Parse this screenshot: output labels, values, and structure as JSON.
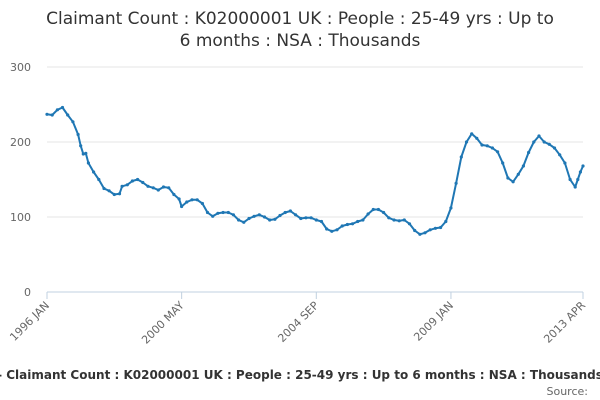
{
  "chart_data": {
    "type": "line",
    "title_lines": [
      "Claimant Count : K02000001 UK : People : 25-49 yrs : Up to",
      "6 months : NSA : Thousands"
    ],
    "ylim": [
      0,
      300
    ],
    "y_ticks": [
      0,
      100,
      200,
      300
    ],
    "y_tick_labels": [
      "0",
      "100",
      "200",
      "300"
    ],
    "x_tick_labels": [
      "1996 JAN",
      "2000 MAY",
      "2004 SEP",
      "2009 JAN",
      "2013 APR"
    ],
    "x_tick_dates": [
      "1996-01",
      "2000-05",
      "2004-09",
      "2009-01",
      "2013-04"
    ],
    "x_range": [
      "1996-01",
      "2013-04"
    ],
    "grid": true,
    "legend": "bottom",
    "series": [
      {
        "name": "Claimant Count : K02000001 UK : People : 25-49 yrs : Up to 6 months : NSA : Thousands",
        "color": "#1f77b4",
        "points": [
          [
            "1996-01",
            237
          ],
          [
            "1996-03",
            236
          ],
          [
            "1996-05",
            243
          ],
          [
            "1996-07",
            246
          ],
          [
            "1996-09",
            236
          ],
          [
            "1996-11",
            227
          ],
          [
            "1997-01",
            210
          ],
          [
            "1997-02",
            195
          ],
          [
            "1997-03",
            184
          ],
          [
            "1997-04",
            185
          ],
          [
            "1997-05",
            172
          ],
          [
            "1997-07",
            160
          ],
          [
            "1997-09",
            150
          ],
          [
            "1997-11",
            138
          ],
          [
            "1998-01",
            135
          ],
          [
            "1998-03",
            130
          ],
          [
            "1998-05",
            131
          ],
          [
            "1998-06",
            141
          ],
          [
            "1998-08",
            143
          ],
          [
            "1998-10",
            148
          ],
          [
            "1998-12",
            150
          ],
          [
            "1999-02",
            146
          ],
          [
            "1999-04",
            141
          ],
          [
            "1999-06",
            139
          ],
          [
            "1999-08",
            136
          ],
          [
            "1999-10",
            140
          ],
          [
            "1999-12",
            139
          ],
          [
            "2000-02",
            130
          ],
          [
            "2000-04",
            124
          ],
          [
            "2000-05",
            114
          ],
          [
            "2000-07",
            120
          ],
          [
            "2000-09",
            123
          ],
          [
            "2000-11",
            123
          ],
          [
            "2001-01",
            118
          ],
          [
            "2001-03",
            106
          ],
          [
            "2001-05",
            101
          ],
          [
            "2001-07",
            105
          ],
          [
            "2001-09",
            106
          ],
          [
            "2001-11",
            106
          ],
          [
            "2002-01",
            103
          ],
          [
            "2002-03",
            96
          ],
          [
            "2002-05",
            93
          ],
          [
            "2002-07",
            98
          ],
          [
            "2002-09",
            101
          ],
          [
            "2002-11",
            103
          ],
          [
            "2003-01",
            100
          ],
          [
            "2003-03",
            96
          ],
          [
            "2003-05",
            97
          ],
          [
            "2003-07",
            102
          ],
          [
            "2003-09",
            106
          ],
          [
            "2003-11",
            108
          ],
          [
            "2004-01",
            103
          ],
          [
            "2004-03",
            98
          ],
          [
            "2004-05",
            99
          ],
          [
            "2004-07",
            99
          ],
          [
            "2004-09",
            96
          ],
          [
            "2004-11",
            94
          ],
          [
            "2005-01",
            84
          ],
          [
            "2005-03",
            81
          ],
          [
            "2005-05",
            83
          ],
          [
            "2005-07",
            88
          ],
          [
            "2005-09",
            90
          ],
          [
            "2005-11",
            91
          ],
          [
            "2006-01",
            94
          ],
          [
            "2006-03",
            96
          ],
          [
            "2006-05",
            104
          ],
          [
            "2006-07",
            110
          ],
          [
            "2006-09",
            110
          ],
          [
            "2006-11",
            106
          ],
          [
            "2007-01",
            99
          ],
          [
            "2007-03",
            96
          ],
          [
            "2007-05",
            95
          ],
          [
            "2007-07",
            96
          ],
          [
            "2007-09",
            91
          ],
          [
            "2007-11",
            82
          ],
          [
            "2008-01",
            77
          ],
          [
            "2008-03",
            79
          ],
          [
            "2008-05",
            83
          ],
          [
            "2008-07",
            85
          ],
          [
            "2008-09",
            86
          ],
          [
            "2008-11",
            94
          ],
          [
            "2009-01",
            112
          ],
          [
            "2009-03",
            145
          ],
          [
            "2009-05",
            180
          ],
          [
            "2009-07",
            200
          ],
          [
            "2009-09",
            211
          ],
          [
            "2009-11",
            205
          ],
          [
            "2010-01",
            196
          ],
          [
            "2010-03",
            195
          ],
          [
            "2010-05",
            192
          ],
          [
            "2010-07",
            187
          ],
          [
            "2010-09",
            172
          ],
          [
            "2010-11",
            152
          ],
          [
            "2011-01",
            147
          ],
          [
            "2011-03",
            157
          ],
          [
            "2011-05",
            168
          ],
          [
            "2011-07",
            186
          ],
          [
            "2011-09",
            200
          ],
          [
            "2011-11",
            208
          ],
          [
            "2012-01",
            200
          ],
          [
            "2012-03",
            197
          ],
          [
            "2012-05",
            192
          ],
          [
            "2012-07",
            183
          ],
          [
            "2012-09",
            172
          ],
          [
            "2012-11",
            150
          ],
          [
            "2013-01",
            140
          ],
          [
            "2013-02",
            150
          ],
          [
            "2013-03",
            160
          ],
          [
            "2013-04",
            168
          ]
        ]
      }
    ],
    "legend_text": "- Claimant Count : K02000001 UK : People : 25-49 yrs : Up to 6 months : NSA : Thousands",
    "credit": "Source:"
  }
}
